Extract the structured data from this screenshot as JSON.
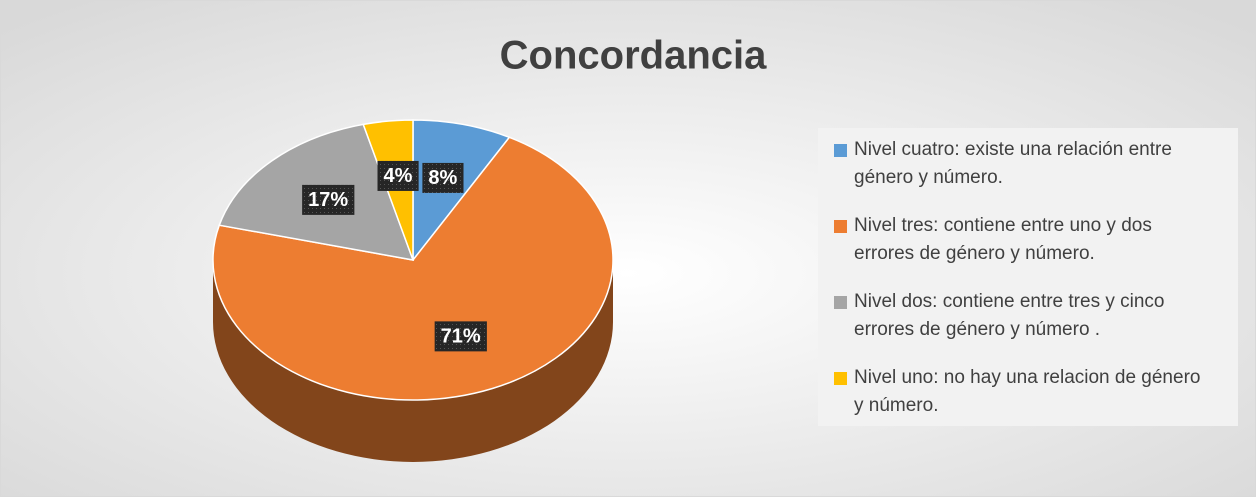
{
  "chart_data": {
    "type": "pie",
    "title": "Concordancia",
    "categories": [
      "Nivel cuatro: existe una relación entre género y número.",
      "Nivel tres: contiene entre uno y dos errores de género y número.",
      "Nivel dos: contiene entre tres y cinco errores de género y número .",
      "Nivel uno: no hay una relacion de género y número."
    ],
    "values": [
      8,
      71,
      17,
      4
    ],
    "value_labels": [
      "8%",
      "71%",
      "17%",
      "4%"
    ],
    "colors": [
      "#5b9bd5",
      "#ed7d31",
      "#a5a5a5",
      "#ffc000"
    ],
    "legend": "right"
  }
}
